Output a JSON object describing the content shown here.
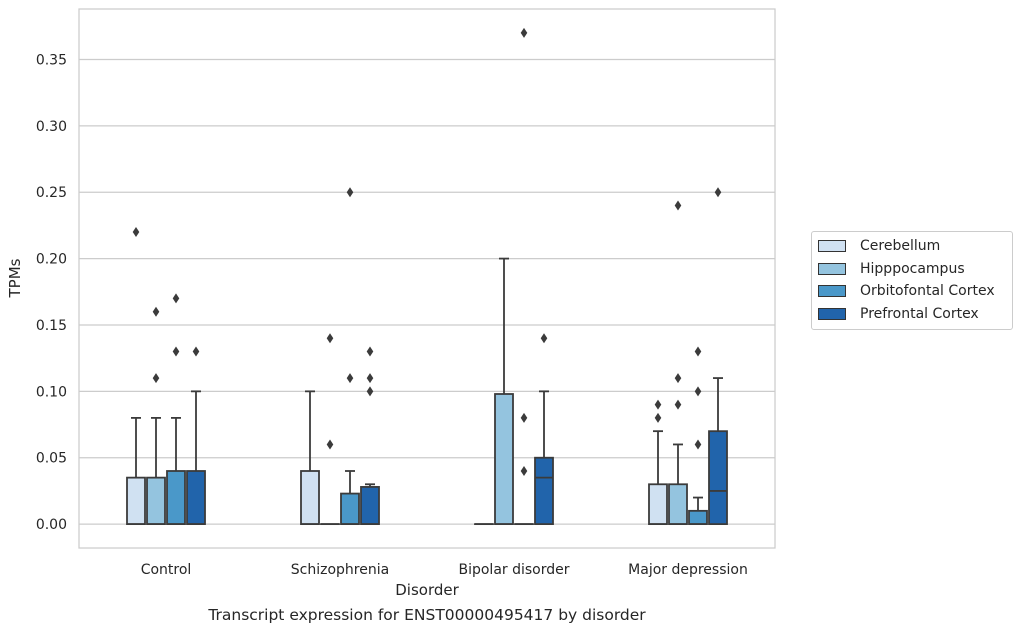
{
  "chart_data": {
    "type": "box",
    "caption": "Transcript expression for ENST00000495417 by disorder",
    "xlabel": "Disorder",
    "ylabel": "TPMs",
    "ylim": [
      -0.018,
      0.388
    ],
    "yticks": [
      0.0,
      0.05,
      0.1,
      0.15,
      0.2,
      0.25,
      0.3,
      0.35
    ],
    "ytick_labels": [
      "0.00",
      "0.05",
      "0.10",
      "0.15",
      "0.20",
      "0.25",
      "0.30",
      "0.35"
    ],
    "grid": true,
    "legend_position": "right",
    "categories": [
      "Control",
      "Schizophrenia",
      "Bipolar disorder",
      "Major depression"
    ],
    "series": [
      {
        "name": "Cerebellum",
        "color": "#d0e1f2",
        "boxes": [
          {
            "q1": 0.0,
            "median": 0.0,
            "q3": 0.035,
            "whisker_low": 0.0,
            "whisker_high": 0.08,
            "outliers": [
              0.22
            ]
          },
          {
            "q1": 0.0,
            "median": 0.0,
            "q3": 0.04,
            "whisker_low": 0.0,
            "whisker_high": 0.1,
            "outliers": []
          },
          {
            "q1": 0.0,
            "median": 0.0,
            "q3": 0.0,
            "whisker_low": 0.0,
            "whisker_high": 0.0,
            "outliers": []
          },
          {
            "q1": 0.0,
            "median": 0.0,
            "q3": 0.03,
            "whisker_low": 0.0,
            "whisker_high": 0.07,
            "outliers": [
              0.08,
              0.09
            ]
          }
        ]
      },
      {
        "name": "Hipppocampus",
        "color": "#94c4df",
        "boxes": [
          {
            "q1": 0.0,
            "median": 0.0,
            "q3": 0.035,
            "whisker_low": 0.0,
            "whisker_high": 0.08,
            "outliers": [
              0.11,
              0.16
            ]
          },
          {
            "q1": 0.0,
            "median": 0.0,
            "q3": 0.0,
            "whisker_low": 0.0,
            "whisker_high": 0.0,
            "outliers": [
              0.06,
              0.14
            ]
          },
          {
            "q1": 0.0,
            "median": 0.0,
            "q3": 0.098,
            "whisker_low": 0.0,
            "whisker_high": 0.2,
            "outliers": []
          },
          {
            "q1": 0.0,
            "median": 0.0,
            "q3": 0.03,
            "whisker_low": 0.0,
            "whisker_high": 0.06,
            "outliers": [
              0.09,
              0.11,
              0.24
            ]
          }
        ]
      },
      {
        "name": "Orbitofontal Cortex",
        "color": "#4a98c9",
        "boxes": [
          {
            "q1": 0.0,
            "median": 0.0,
            "q3": 0.04,
            "whisker_low": 0.0,
            "whisker_high": 0.08,
            "outliers": [
              0.13,
              0.17
            ]
          },
          {
            "q1": 0.0,
            "median": 0.0,
            "q3": 0.023,
            "whisker_low": 0.0,
            "whisker_high": 0.04,
            "outliers": [
              0.11,
              0.25
            ]
          },
          {
            "q1": 0.0,
            "median": 0.0,
            "q3": 0.0,
            "whisker_low": 0.0,
            "whisker_high": 0.0,
            "outliers": [
              0.04,
              0.08,
              0.37
            ]
          },
          {
            "q1": 0.0,
            "median": 0.0,
            "q3": 0.01,
            "whisker_low": 0.0,
            "whisker_high": 0.02,
            "outliers": [
              0.06,
              0.1,
              0.13
            ]
          }
        ]
      },
      {
        "name": "Prefrontal Cortex",
        "color": "#2164ab",
        "boxes": [
          {
            "q1": 0.0,
            "median": 0.0,
            "q3": 0.04,
            "whisker_low": 0.0,
            "whisker_high": 0.1,
            "outliers": [
              0.13
            ]
          },
          {
            "q1": 0.0,
            "median": 0.0,
            "q3": 0.028,
            "whisker_low": 0.0,
            "whisker_high": 0.03,
            "outliers": [
              0.1,
              0.11,
              0.13
            ]
          },
          {
            "q1": 0.0,
            "median": 0.035,
            "q3": 0.05,
            "whisker_low": 0.0,
            "whisker_high": 0.1,
            "outliers": [
              0.14
            ]
          },
          {
            "q1": 0.0,
            "median": 0.025,
            "q3": 0.07,
            "whisker_low": 0.0,
            "whisker_high": 0.11,
            "outliers": [
              0.25
            ]
          }
        ]
      }
    ]
  }
}
